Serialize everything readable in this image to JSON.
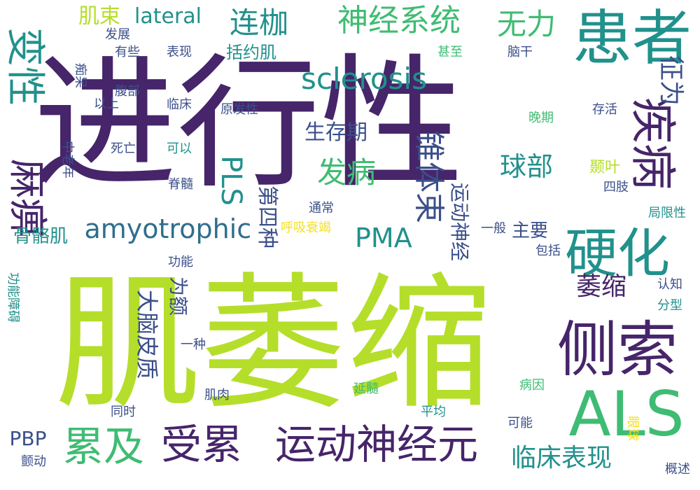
{
  "palette": {
    "dark_purple": "#46256a",
    "indigo": "#3b4f8a",
    "blue": "#2f6e8e",
    "teal": "#21918c",
    "green": "#3fbc73",
    "lime": "#b5de2b",
    "yellow": "#f5e01f"
  },
  "words": [
    {
      "text": "进行性",
      "color": "dark_purple",
      "vertical": false
    },
    {
      "text": "肌萎缩",
      "color": "lime",
      "vertical": false
    },
    {
      "text": "患者",
      "color": "teal",
      "vertical": false
    },
    {
      "text": "变性",
      "color": "teal",
      "vertical": true
    },
    {
      "text": "疾病",
      "color": "dark_purple",
      "vertical": true
    },
    {
      "text": "麻痹",
      "color": "dark_purple",
      "vertical": true
    },
    {
      "text": "硬化",
      "color": "teal",
      "vertical": false
    },
    {
      "text": "侧索",
      "color": "dark_purple",
      "vertical": false
    },
    {
      "text": "ALS",
      "color": "green",
      "vertical": false
    },
    {
      "text": "运动神经元",
      "color": "dark_purple",
      "vertical": false
    },
    {
      "text": "受累",
      "color": "dark_purple",
      "vertical": false
    },
    {
      "text": "累及",
      "color": "green",
      "vertical": false
    },
    {
      "text": "神经系统",
      "color": "green",
      "vertical": false
    },
    {
      "text": "连枷",
      "color": "teal",
      "vertical": false
    },
    {
      "text": "无力",
      "color": "green",
      "vertical": false
    },
    {
      "text": "肌束",
      "color": "lime",
      "vertical": false
    },
    {
      "text": "lateral",
      "color": "teal",
      "vertical": false
    },
    {
      "text": "sclerosis",
      "color": "teal",
      "vertical": false
    },
    {
      "text": "amyotrophic",
      "color": "blue",
      "vertical": false
    },
    {
      "text": "PMA",
      "color": "teal",
      "vertical": false
    },
    {
      "text": "PBP",
      "color": "indigo",
      "vertical": false
    },
    {
      "text": "PLS",
      "color": "teal",
      "vertical": true
    },
    {
      "text": "发病",
      "color": "green",
      "vertical": false
    },
    {
      "text": "锥体束",
      "color": "indigo",
      "vertical": true
    },
    {
      "text": "球部",
      "color": "teal",
      "vertical": false
    },
    {
      "text": "征为",
      "color": "indigo",
      "vertical": true
    },
    {
      "text": "萎缩",
      "color": "dark_purple",
      "vertical": false
    },
    {
      "text": "临床表现",
      "color": "teal",
      "vertical": false
    },
    {
      "text": "生存期",
      "color": "indigo",
      "vertical": false
    },
    {
      "text": "第四种",
      "color": "indigo",
      "vertical": true
    },
    {
      "text": "运动神经",
      "color": "indigo",
      "vertical": true
    },
    {
      "text": "大脑皮质",
      "color": "indigo",
      "vertical": true
    },
    {
      "text": "为额",
      "color": "indigo",
      "vertical": true
    },
    {
      "text": "骨骼肌",
      "color": "teal",
      "vertical": false
    },
    {
      "text": "括约肌",
      "color": "teal",
      "vertical": false
    },
    {
      "text": "主要",
      "color": "indigo",
      "vertical": false
    },
    {
      "text": "颞叶",
      "color": "lime",
      "vertical": false
    },
    {
      "text": "发展",
      "color": "indigo",
      "vertical": false
    },
    {
      "text": "表现",
      "color": "indigo",
      "vertical": false
    },
    {
      "text": "有些",
      "color": "indigo",
      "vertical": false
    },
    {
      "text": "甚至",
      "color": "green",
      "vertical": false
    },
    {
      "text": "脑干",
      "color": "indigo",
      "vertical": false
    },
    {
      "text": "痴呆",
      "color": "indigo",
      "vertical": true
    },
    {
      "text": "腹部",
      "color": "indigo",
      "vertical": false
    },
    {
      "text": "以上",
      "color": "indigo",
      "vertical": false
    },
    {
      "text": "临床",
      "color": "indigo",
      "vertical": false
    },
    {
      "text": "原发性",
      "color": "indigo",
      "vertical": false
    },
    {
      "text": "晚期",
      "color": "green",
      "vertical": false
    },
    {
      "text": "存活",
      "color": "indigo",
      "vertical": false
    },
    {
      "text": "中老年",
      "color": "indigo",
      "vertical": true
    },
    {
      "text": "死亡",
      "color": "indigo",
      "vertical": false
    },
    {
      "text": "可以",
      "color": "teal",
      "vertical": false
    },
    {
      "text": "脊髓",
      "color": "indigo",
      "vertical": false
    },
    {
      "text": "四肢",
      "color": "indigo",
      "vertical": false
    },
    {
      "text": "局限性",
      "color": "teal",
      "vertical": false
    },
    {
      "text": "通常",
      "color": "indigo",
      "vertical": false
    },
    {
      "text": "呼吸衰竭",
      "color": "yellow",
      "vertical": false
    },
    {
      "text": "一般",
      "color": "indigo",
      "vertical": false
    },
    {
      "text": "包括",
      "color": "indigo",
      "vertical": false
    },
    {
      "text": "功能",
      "color": "indigo",
      "vertical": false
    },
    {
      "text": "功能障碍",
      "color": "teal",
      "vertical": true
    },
    {
      "text": "认知",
      "color": "indigo",
      "vertical": false
    },
    {
      "text": "分型",
      "color": "teal",
      "vertical": false
    },
    {
      "text": "一种",
      "color": "indigo",
      "vertical": false
    },
    {
      "text": "肌肉",
      "color": "indigo",
      "vertical": false
    },
    {
      "text": "延髓",
      "color": "green",
      "vertical": false
    },
    {
      "text": "病因",
      "color": "green",
      "vertical": false
    },
    {
      "text": "同时",
      "color": "indigo",
      "vertical": false
    },
    {
      "text": "平均",
      "color": "teal",
      "vertical": false
    },
    {
      "text": "眼球",
      "color": "yellow",
      "vertical": true
    },
    {
      "text": "可能",
      "color": "indigo",
      "vertical": false
    },
    {
      "text": "颤动",
      "color": "indigo",
      "vertical": false
    },
    {
      "text": "概述",
      "color": "indigo",
      "vertical": false
    }
  ]
}
